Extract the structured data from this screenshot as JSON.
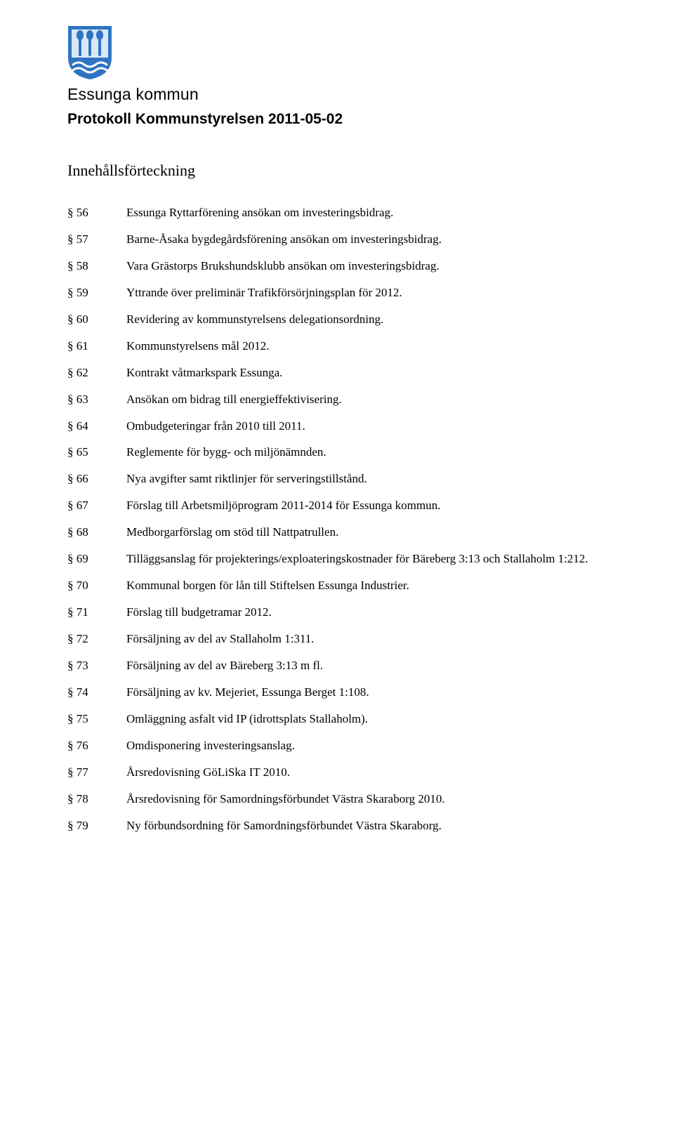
{
  "branding": {
    "wordmark": "Essunga kommun",
    "logo_colors": {
      "shield_bg": "#2e74c3",
      "shield_border": "#2e74c3",
      "light": "#d9e8f5",
      "detail": "#ffffff",
      "wheat": "#ffffff"
    }
  },
  "header": {
    "title": "Protokoll Kommunstyrelsen 2011-05-02"
  },
  "toc": {
    "heading": "Innehållsförteckning",
    "items": [
      {
        "num": "§ 56",
        "text": "Essunga Ryttarförening ansökan om investeringsbidrag."
      },
      {
        "num": "§ 57",
        "text": "Barne-Åsaka bygdegårdsförening ansökan om investeringsbidrag."
      },
      {
        "num": "§ 58",
        "text": "Vara Grästorps Brukshundsklubb ansökan om investeringsbidrag."
      },
      {
        "num": "§ 59",
        "text": "Yttrande över preliminär Trafikförsörjningsplan för 2012."
      },
      {
        "num": "§ 60",
        "text": "Revidering av kommunstyrelsens delegationsordning."
      },
      {
        "num": "§ 61",
        "text": "Kommunstyrelsens mål 2012."
      },
      {
        "num": "§ 62",
        "text": "Kontrakt våtmarkspark Essunga."
      },
      {
        "num": "§ 63",
        "text": "Ansökan om bidrag till energieffektivisering."
      },
      {
        "num": "§ 64",
        "text": "Ombudgeteringar från 2010 till 2011."
      },
      {
        "num": "§ 65",
        "text": "Reglemente för bygg- och miljönämnden."
      },
      {
        "num": "§ 66",
        "text": "Nya avgifter samt riktlinjer för serveringstillstånd."
      },
      {
        "num": "§ 67",
        "text": "Förslag till Arbetsmiljöprogram 2011-2014 för Essunga kommun."
      },
      {
        "num": "§ 68",
        "text": "Medborgarförslag om stöd till Nattpatrullen."
      },
      {
        "num": "§ 69",
        "text": "Tilläggsanslag för projekterings/exploateringskostnader för Bäreberg 3:13 och Stallaholm 1:212."
      },
      {
        "num": "§ 70",
        "text": "Kommunal borgen för lån till Stiftelsen Essunga Industrier."
      },
      {
        "num": "§ 71",
        "text": "Förslag till budgetramar 2012."
      },
      {
        "num": "§ 72",
        "text": "Försäljning av del av Stallaholm 1:311."
      },
      {
        "num": "§ 73",
        "text": "Försäljning av del av Bäreberg 3:13 m fl."
      },
      {
        "num": "§ 74",
        "text": "Försäljning av kv. Mejeriet, Essunga Berget 1:108."
      },
      {
        "num": "§ 75",
        "text": "Omläggning asfalt vid IP (idrottsplats Stallaholm)."
      },
      {
        "num": "§ 76",
        "text": "Omdisponering investeringsanslag."
      },
      {
        "num": "§ 77",
        "text": "Årsredovisning GöLiSka IT 2010."
      },
      {
        "num": "§ 78",
        "text": "Årsredovisning för Samordningsförbundet Västra Skaraborg 2010."
      },
      {
        "num": "§ 79",
        "text": "Ny förbundsordning för Samordningsförbundet Västra Skaraborg."
      }
    ]
  }
}
